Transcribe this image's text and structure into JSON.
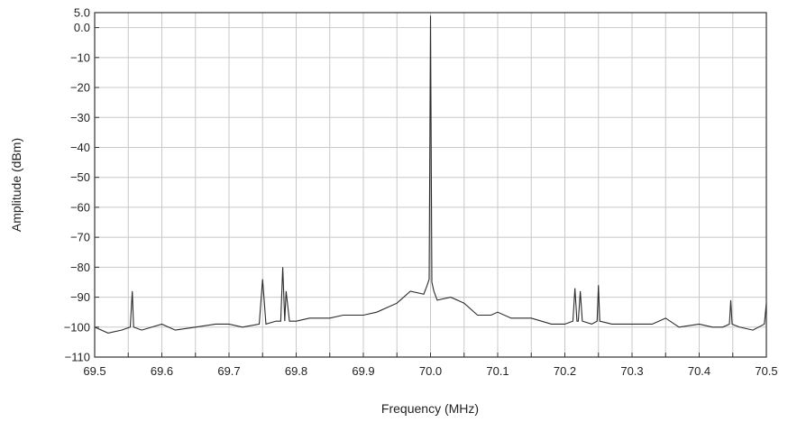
{
  "chart_data": {
    "type": "line",
    "title": "",
    "xlabel": "Frequency (MHz)",
    "ylabel": "Amplitude (dBm)",
    "xlim": [
      69.5,
      70.5
    ],
    "ylim": [
      -110,
      5
    ],
    "xticks": [
      69.5,
      69.55,
      69.6,
      69.65,
      69.7,
      69.75,
      69.8,
      69.85,
      69.9,
      69.95,
      70.0,
      70.05,
      70.1,
      70.15,
      70.2,
      70.25,
      70.3,
      70.35,
      70.4,
      70.45,
      70.5
    ],
    "xtick_labels": [
      "69.5",
      "",
      "69.6",
      "",
      "69.7",
      "",
      "69.8",
      "",
      "69.9",
      "",
      "70.0",
      "",
      "70.1",
      "",
      "70.2",
      "",
      "70.3",
      "",
      "70.4",
      "",
      "70.5"
    ],
    "yticks": [
      5,
      0,
      -10,
      -20,
      -30,
      -40,
      -50,
      -60,
      -70,
      -80,
      -90,
      -100,
      -110
    ],
    "ytick_labels": [
      "5.0",
      "0.0",
      "−10",
      "−20",
      "−30",
      "−40",
      "−50",
      "−60",
      "−70",
      "−80",
      "−90",
      "−100",
      "−110"
    ],
    "grid": true,
    "colors": {
      "line": "#2b2b2b",
      "grid": "#c8c8c8",
      "frame": "#333333",
      "background": "#ffffff"
    },
    "series": [
      {
        "x": [
          69.5,
          69.52,
          69.54,
          69.553,
          69.556,
          69.558,
          69.57,
          69.6,
          69.62,
          69.65,
          69.68,
          69.7,
          69.72,
          69.745,
          69.75,
          69.755,
          69.77,
          69.777,
          69.78,
          69.783,
          69.785,
          69.79,
          69.8,
          69.82,
          69.85,
          69.87,
          69.9,
          69.92,
          69.95,
          69.97,
          69.99,
          69.995,
          69.998,
          70.0,
          70.002,
          70.005,
          70.01,
          70.03,
          70.05,
          70.07,
          70.09,
          70.1,
          70.12,
          70.15,
          70.18,
          70.2,
          70.212,
          70.215,
          70.218,
          70.22,
          70.223,
          70.226,
          70.24,
          70.248,
          70.25,
          70.252,
          70.27,
          70.3,
          70.33,
          70.35,
          70.37,
          70.4,
          70.42,
          70.435,
          70.445,
          70.447,
          70.449,
          70.46,
          70.48,
          70.497,
          70.5
        ],
        "y": [
          -100,
          -102,
          -101,
          -100,
          -88,
          -100,
          -101,
          -99,
          -101,
          -100,
          -99,
          -99,
          -100,
          -99,
          -84,
          -99,
          -98,
          -98,
          -80,
          -98,
          -88,
          -98,
          -98,
          -97,
          -97,
          -96,
          -96,
          -95,
          -92,
          -88,
          -89,
          -86,
          -84,
          4,
          -85,
          -88,
          -91,
          -90,
          -92,
          -96,
          -96,
          -95,
          -97,
          -97,
          -99,
          -99,
          -98,
          -87,
          -98,
          -98,
          -88,
          -98,
          -99,
          -98,
          -86,
          -98,
          -99,
          -99,
          -99,
          -97,
          -100,
          -99,
          -100,
          -100,
          -99,
          -91,
          -99,
          -100,
          -101,
          -99,
          -92
        ]
      }
    ]
  }
}
